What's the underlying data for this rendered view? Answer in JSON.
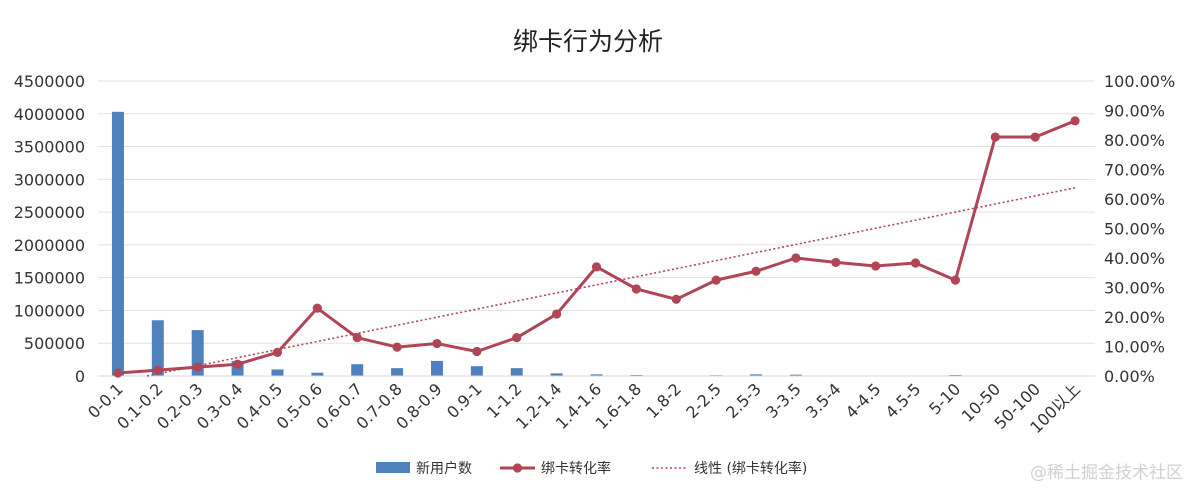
{
  "chart_data": {
    "type": "bar",
    "title": "绑卡行为分析",
    "categories": [
      "0-0.1",
      "0.1-0.2",
      "0.2-0.3",
      "0.3-0.4",
      "0.4-0.5",
      "0.5-0.6",
      "0.6-0.7",
      "0.7-0.8",
      "0.8-0.9",
      "0.9-1",
      "1-1.2",
      "1.2-1.4",
      "1.4-1.6",
      "1.6-1.8",
      "1.8-2",
      "2-2.5",
      "2.5-3",
      "3-3.5",
      "3.5-4",
      "4-4.5",
      "4.5-5",
      "5-10",
      "10-50",
      "50-100",
      "100以上"
    ],
    "left_axis": {
      "ylim": [
        0,
        4500000
      ],
      "ticks": [
        "0",
        "500000",
        "1000000",
        "1500000",
        "2000000",
        "2500000",
        "3000000",
        "3500000",
        "4000000",
        "4500000"
      ]
    },
    "right_axis": {
      "ylim": [
        0,
        100
      ],
      "ticks": [
        "0.00%",
        "10.00%",
        "20.00%",
        "30.00%",
        "40.00%",
        "50.00%",
        "60.00%",
        "70.00%",
        "80.00%",
        "90.00%",
        "100.00%"
      ]
    },
    "grid": true,
    "legend_position": "bottom",
    "series": [
      {
        "name": "新用户数",
        "kind": "bar",
        "axis": "left",
        "color": "#4f81bd",
        "values": [
          4030000,
          850000,
          700000,
          230000,
          100000,
          50000,
          180000,
          120000,
          230000,
          150000,
          120000,
          40000,
          25000,
          15000,
          8000,
          12000,
          25000,
          20000,
          8000,
          5000,
          5000,
          15000,
          3000,
          2000,
          2000
        ]
      },
      {
        "name": "绑卡转化率",
        "kind": "line",
        "axis": "right",
        "color": "#b04556",
        "values": [
          1.0,
          2.0,
          3.0,
          4.0,
          8.0,
          23.0,
          13.0,
          9.8,
          11.0,
          8.3,
          13.0,
          21.0,
          37.0,
          29.5,
          26.0,
          32.5,
          35.5,
          40.0,
          38.5,
          37.3,
          38.3,
          32.5,
          81.0,
          81.0,
          86.5
        ]
      },
      {
        "name": "线性 (绑卡转化率)",
        "kind": "trendline",
        "axis": "right",
        "color": "#b04556",
        "from": -2.0,
        "to": 63.8
      }
    ]
  },
  "watermark": "@稀土掘金技术社区"
}
